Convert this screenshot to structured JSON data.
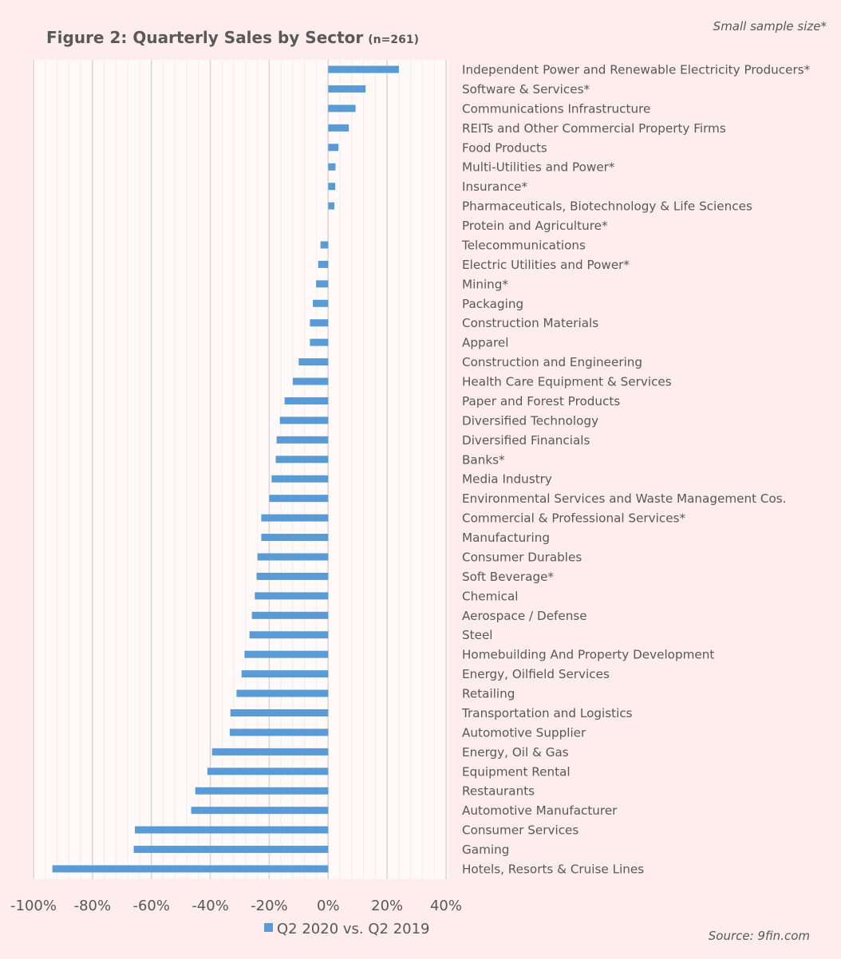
{
  "chart_data": {
    "type": "bar",
    "orientation": "horizontal",
    "title": "Figure 2: Quarterly Sales by Sector",
    "subtitle": "(n=261)",
    "note": "Small sample size*",
    "source": "Source: 9fin.com",
    "xlabel": "",
    "ylabel": "",
    "xlim": [
      -100,
      40
    ],
    "x_ticks": [
      -100,
      -80,
      -60,
      -40,
      -20,
      0,
      20,
      40
    ],
    "x_tick_labels": [
      "-100%",
      "-80%",
      "-60%",
      "-40%",
      "-20%",
      "0%",
      "20%",
      "40%"
    ],
    "grid": true,
    "legend_position": "bottom",
    "bar_color": "#5b9bd5",
    "categories": [
      "Independent Power and Renewable Electricity Producers*",
      "Software & Services*",
      "Communications Infrastructure",
      "REITs and Other Commercial Property Firms",
      "Food Products",
      "Multi-Utilities and Power*",
      "Insurance*",
      "Pharmaceuticals, Biotechnology & Life Sciences",
      "Protein and Agriculture*",
      "Telecommunications",
      "Electric Utilities and Power*",
      "Mining*",
      "Packaging",
      "Construction Materials",
      "Apparel",
      "Construction and Engineering",
      "Health Care Equipment & Services",
      "Paper and Forest Products",
      "Diversified Technology",
      "Diversified Financials",
      "Banks*",
      "Media Industry",
      "Environmental Services and Waste Management Cos.",
      "Commercial & Professional Services*",
      "Manufacturing",
      "Consumer Durables",
      "Soft Beverage*",
      "Chemical",
      "Aerospace / Defense",
      "Steel",
      "Homebuilding And Property Development",
      "Energy, Oilfield Services",
      "Retailing",
      "Transportation and Logistics",
      "Automotive Supplier",
      "Energy, Oil & Gas",
      "Equipment Rental",
      "Restaurants",
      "Automotive Manufacturer",
      "Consumer Services",
      "Gaming",
      "Hotels, Resorts & Cruise Lines"
    ],
    "series": [
      {
        "name": "Q2 2020 vs. Q2 2019",
        "values": [
          24,
          12.7,
          9.3,
          7,
          3.5,
          2.5,
          2.4,
          2.1,
          0,
          -2.6,
          -3.4,
          -4.1,
          -5.2,
          -6.2,
          -6.2,
          -10,
          -12,
          -14.8,
          -16.4,
          -17.5,
          -17.8,
          -19.2,
          -20,
          -22.7,
          -22.7,
          -24,
          -24.3,
          -24.9,
          -25.9,
          -26.7,
          -28.4,
          -29.4,
          -31.1,
          -33.2,
          -33.4,
          -39.4,
          -41,
          -45.1,
          -46.5,
          -65.6,
          -66,
          -93.6
        ]
      }
    ]
  }
}
